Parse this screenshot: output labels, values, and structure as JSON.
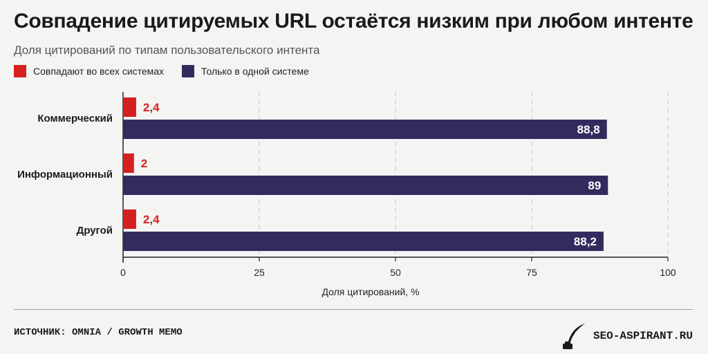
{
  "title": "Совпадение цитируемых URL остаётся низким при любом интенте",
  "subtitle": "Доля цитирований по типам пользовательского интента",
  "colors": {
    "red": "#d61f1f",
    "purple": "#352a5e",
    "grid": "#c9c9c9"
  },
  "legend": {
    "items": [
      {
        "label": "Совпадают во всех системах",
        "color": "#d61f1f"
      },
      {
        "label": "Только в одной системе",
        "color": "#352a5e"
      }
    ]
  },
  "chart_data": {
    "type": "bar",
    "orientation": "horizontal",
    "categories": [
      "Коммерческий",
      "Информационный",
      "Другой"
    ],
    "series": [
      {
        "name": "Совпадают во всех системах",
        "values": [
          2.4,
          2,
          2.4
        ],
        "labels": [
          "2,4",
          "2",
          "2,4"
        ],
        "color": "#d61f1f"
      },
      {
        "name": "Только в одной системе",
        "values": [
          88.8,
          89,
          88.2
        ],
        "labels": [
          "88,8",
          "89",
          "88,2"
        ],
        "color": "#352a5e"
      }
    ],
    "xlabel": "Доля цитирований, %",
    "xlim": [
      0,
      100
    ],
    "xticks": [
      0,
      25,
      50,
      75,
      100
    ],
    "xtick_labels": [
      "0",
      "25",
      "50",
      "75",
      "100"
    ],
    "grid": "vertical dashed",
    "legend_position": "top-left"
  },
  "footer": {
    "source": "ИСТОЧНИК: OMNIA / GROWTH MEMO",
    "brand": "SEO-ASPIRANT.RU",
    "brand_icon": "quill-inkwell-icon"
  }
}
